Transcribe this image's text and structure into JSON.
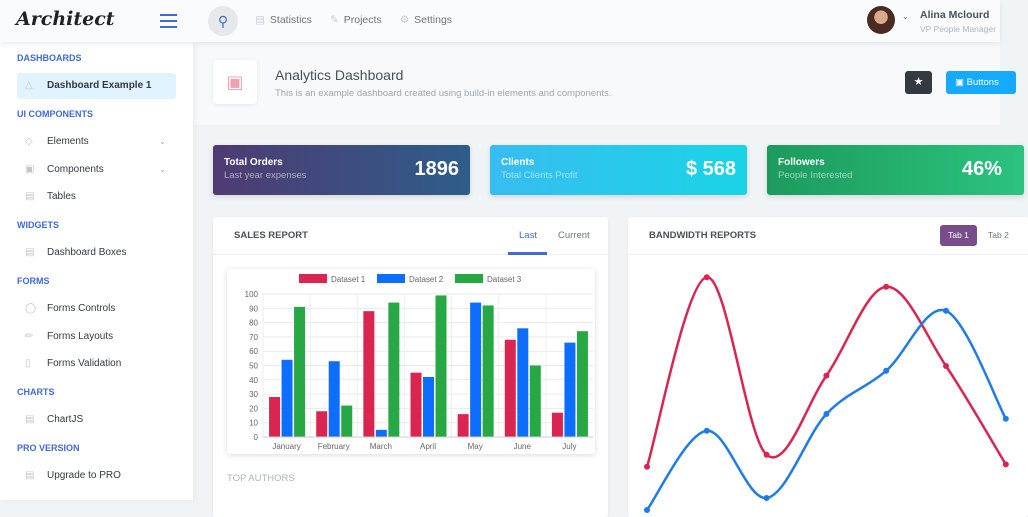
{
  "header": {
    "logo": "Architect",
    "nav": [
      {
        "icon": "database-icon",
        "label": "Statistics"
      },
      {
        "icon": "edit-icon",
        "label": "Projects"
      },
      {
        "icon": "gear-icon",
        "label": "Settings"
      }
    ],
    "user": {
      "name": "Alina Mclourd",
      "role": "VP People Manager"
    }
  },
  "sidebar": {
    "sections": [
      {
        "title": "DASHBOARDS",
        "items": [
          {
            "label": "Dashboard Example 1",
            "icon": "rocket-icon",
            "active": true
          }
        ]
      },
      {
        "title": "UI COMPONENTS",
        "items": [
          {
            "label": "Elements",
            "icon": "diamond-icon",
            "chevron": true
          },
          {
            "label": "Components",
            "icon": "car-icon",
            "chevron": true
          },
          {
            "label": "Tables",
            "icon": "table-icon"
          }
        ]
      },
      {
        "title": "WIDGETS",
        "items": [
          {
            "label": "Dashboard Boxes",
            "icon": "grid-icon"
          }
        ]
      },
      {
        "title": "FORMS",
        "items": [
          {
            "label": "Forms Controls",
            "icon": "light-icon"
          },
          {
            "label": "Forms Layouts",
            "icon": "pencil-icon"
          },
          {
            "label": "Forms Validation",
            "icon": "battery-icon"
          }
        ]
      },
      {
        "title": "CHARTS",
        "items": [
          {
            "label": "ChartJS",
            "icon": "chart-icon"
          }
        ]
      },
      {
        "title": "PRO VERSION",
        "items": [
          {
            "label": "Upgrade to PRO",
            "icon": "graph-icon"
          }
        ]
      }
    ]
  },
  "page": {
    "title": "Analytics Dashboard",
    "subtitle": "This is an example dashboard created using build-in elements and components.",
    "button_label": "Buttons"
  },
  "cards": [
    {
      "title": "Total Orders",
      "subtitle": "Last year expenses",
      "value": "1896",
      "gradient": [
        "#4e3b72",
        "#2e5d8a"
      ]
    },
    {
      "title": "Clients",
      "subtitle": "Total Clients Profit",
      "value": "$ 568",
      "gradient": [
        "#37bdf0",
        "#1ad4e6"
      ]
    },
    {
      "title": "Followers",
      "subtitle": "People Interested",
      "value": "46%",
      "gradient": [
        "#1c9b5e",
        "#2cc27f"
      ]
    }
  ],
  "sales": {
    "title": "SALES REPORT",
    "tabs": [
      "Last",
      "Current"
    ],
    "section": "TOP AUTHORS"
  },
  "bandwidth": {
    "title": "BANDWIDTH REPORTS",
    "tabs": [
      "Tab 1",
      "Tab 2"
    ]
  },
  "chart_data": [
    {
      "type": "bar",
      "categories": [
        "January",
        "February",
        "March",
        "April",
        "May",
        "June",
        "July"
      ],
      "ylim": [
        0,
        100
      ],
      "yticks": [
        0,
        10,
        20,
        30,
        40,
        50,
        60,
        70,
        80,
        90,
        100
      ],
      "grid": true,
      "legend": "top",
      "series": [
        {
          "name": "Dataset 1",
          "color": "#d92550",
          "values": [
            28,
            18,
            88,
            45,
            16,
            68,
            17
          ]
        },
        {
          "name": "Dataset 2",
          "color": "#0d6efd",
          "values": [
            54,
            53,
            5,
            42,
            94,
            76,
            66
          ]
        },
        {
          "name": "Dataset 3",
          "color": "#28a745",
          "values": [
            91,
            22,
            94,
            99,
            92,
            50,
            74
          ]
        }
      ]
    },
    {
      "type": "line",
      "ylim": [
        0,
        100
      ],
      "grid": false,
      "series": [
        {
          "color": "#d92550",
          "values": [
            18,
            97,
            23,
            56,
            93,
            60,
            19
          ]
        },
        {
          "color": "#1e7be8",
          "values": [
            0,
            33,
            5,
            40,
            58,
            83,
            38
          ]
        }
      ]
    }
  ]
}
